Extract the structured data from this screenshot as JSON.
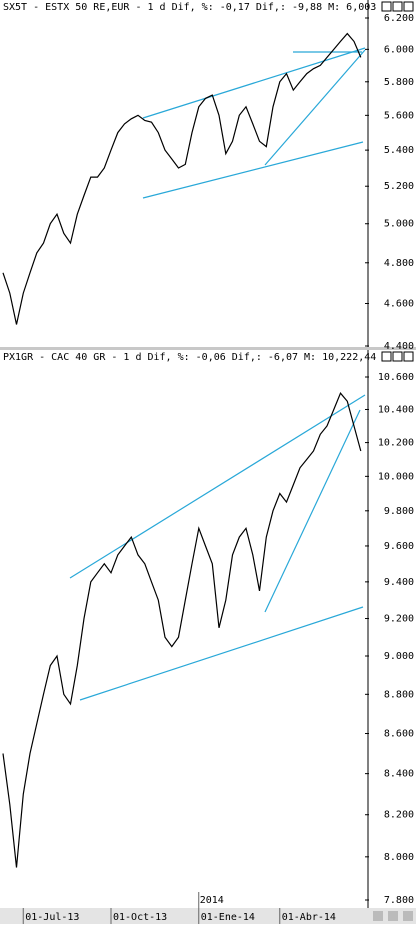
{
  "chart_data": [
    {
      "type": "line",
      "title": "SX5T - ESTX 50 RE,EUR -  1 d Dif, %: -0,17 Dif,: -9,88 M: 6,003",
      "log": true,
      "color": "#000000",
      "values": [
        4750,
        4650,
        4500,
        4650,
        4750,
        4850,
        4900,
        5000,
        5050,
        4950,
        4900,
        5050,
        5150,
        5250,
        5250,
        5300,
        5400,
        5500,
        5550,
        5580,
        5600,
        5570,
        5560,
        5500,
        5400,
        5350,
        5300,
        5320,
        5500,
        5650,
        5700,
        5720,
        5600,
        5380,
        5450,
        5600,
        5650,
        5550,
        5450,
        5420,
        5650,
        5800,
        5850,
        5750,
        5800,
        5850,
        5880,
        5900,
        5950,
        6000,
        6050,
        6100,
        6050,
        5950
      ],
      "ylim": [
        4400,
        6200
      ],
      "yticks": [
        {
          "value": 4400,
          "label": "4.400"
        },
        {
          "value": 4600,
          "label": "4.600"
        },
        {
          "value": 4800,
          "label": "4.800"
        },
        {
          "value": 5000,
          "label": "5.000"
        },
        {
          "value": 5200,
          "label": "5.200"
        },
        {
          "value": 5400,
          "label": "5.400"
        },
        {
          "value": 5600,
          "label": "5.600"
        },
        {
          "value": 5800,
          "label": "5.800"
        },
        {
          "value": 6000,
          "label": "6.000"
        },
        {
          "value": 6200,
          "label": "6.200"
        }
      ]
    },
    {
      "type": "line",
      "title": "PX1GR - CAC 40 GR -  1 d Dif, %: -0,06 Dif,: -6,07 M: 10,222,44",
      "log": true,
      "color": "#000000",
      "categories": [
        null,
        null,
        null,
        "01-Jul-13",
        null,
        null,
        null,
        null,
        null,
        null,
        null,
        null,
        null,
        null,
        null,
        null,
        "01-Oct-13",
        null,
        null,
        null,
        null,
        null,
        null,
        null,
        null,
        null,
        null,
        null,
        null,
        "01-Ene-14",
        null,
        null,
        null,
        null,
        null,
        null,
        null,
        null,
        null,
        null,
        null,
        "01-Abr-14",
        null,
        null,
        null,
        null,
        null,
        null,
        null,
        null,
        null,
        null,
        null,
        null
      ],
      "annotation": "2014",
      "values": [
        8500,
        8250,
        7950,
        8300,
        8500,
        8650,
        8800,
        8950,
        9000,
        8800,
        8750,
        8950,
        9200,
        9400,
        9450,
        9500,
        9450,
        9550,
        9600,
        9650,
        9550,
        9500,
        9400,
        9300,
        9100,
        9050,
        9100,
        9300,
        9500,
        9700,
        9600,
        9500,
        9150,
        9300,
        9550,
        9650,
        9700,
        9550,
        9350,
        9650,
        9800,
        9900,
        9850,
        9950,
        10050,
        10100,
        10150,
        10250,
        10300,
        10400,
        10500,
        10450,
        10300,
        10150
      ],
      "ylim": [
        7800,
        10600
      ],
      "yticks": [
        {
          "value": 7800,
          "label": "7.800"
        },
        {
          "value": 8000,
          "label": "8.000"
        },
        {
          "value": 8200,
          "label": "8.200"
        },
        {
          "value": 8400,
          "label": "8.400"
        },
        {
          "value": 8600,
          "label": "8.600"
        },
        {
          "value": 8800,
          "label": "8.800"
        },
        {
          "value": 9000,
          "label": "9.000"
        },
        {
          "value": 9200,
          "label": "9.200"
        },
        {
          "value": 9400,
          "label": "9.400"
        },
        {
          "value": 9600,
          "label": "9.600"
        },
        {
          "value": 9800,
          "label": "9.800"
        },
        {
          "value": 10000,
          "label": "10.000"
        },
        {
          "value": 10200,
          "label": "10.200"
        },
        {
          "value": 10400,
          "label": "10.400"
        },
        {
          "value": 10600,
          "label": "10.600"
        }
      ]
    }
  ]
}
